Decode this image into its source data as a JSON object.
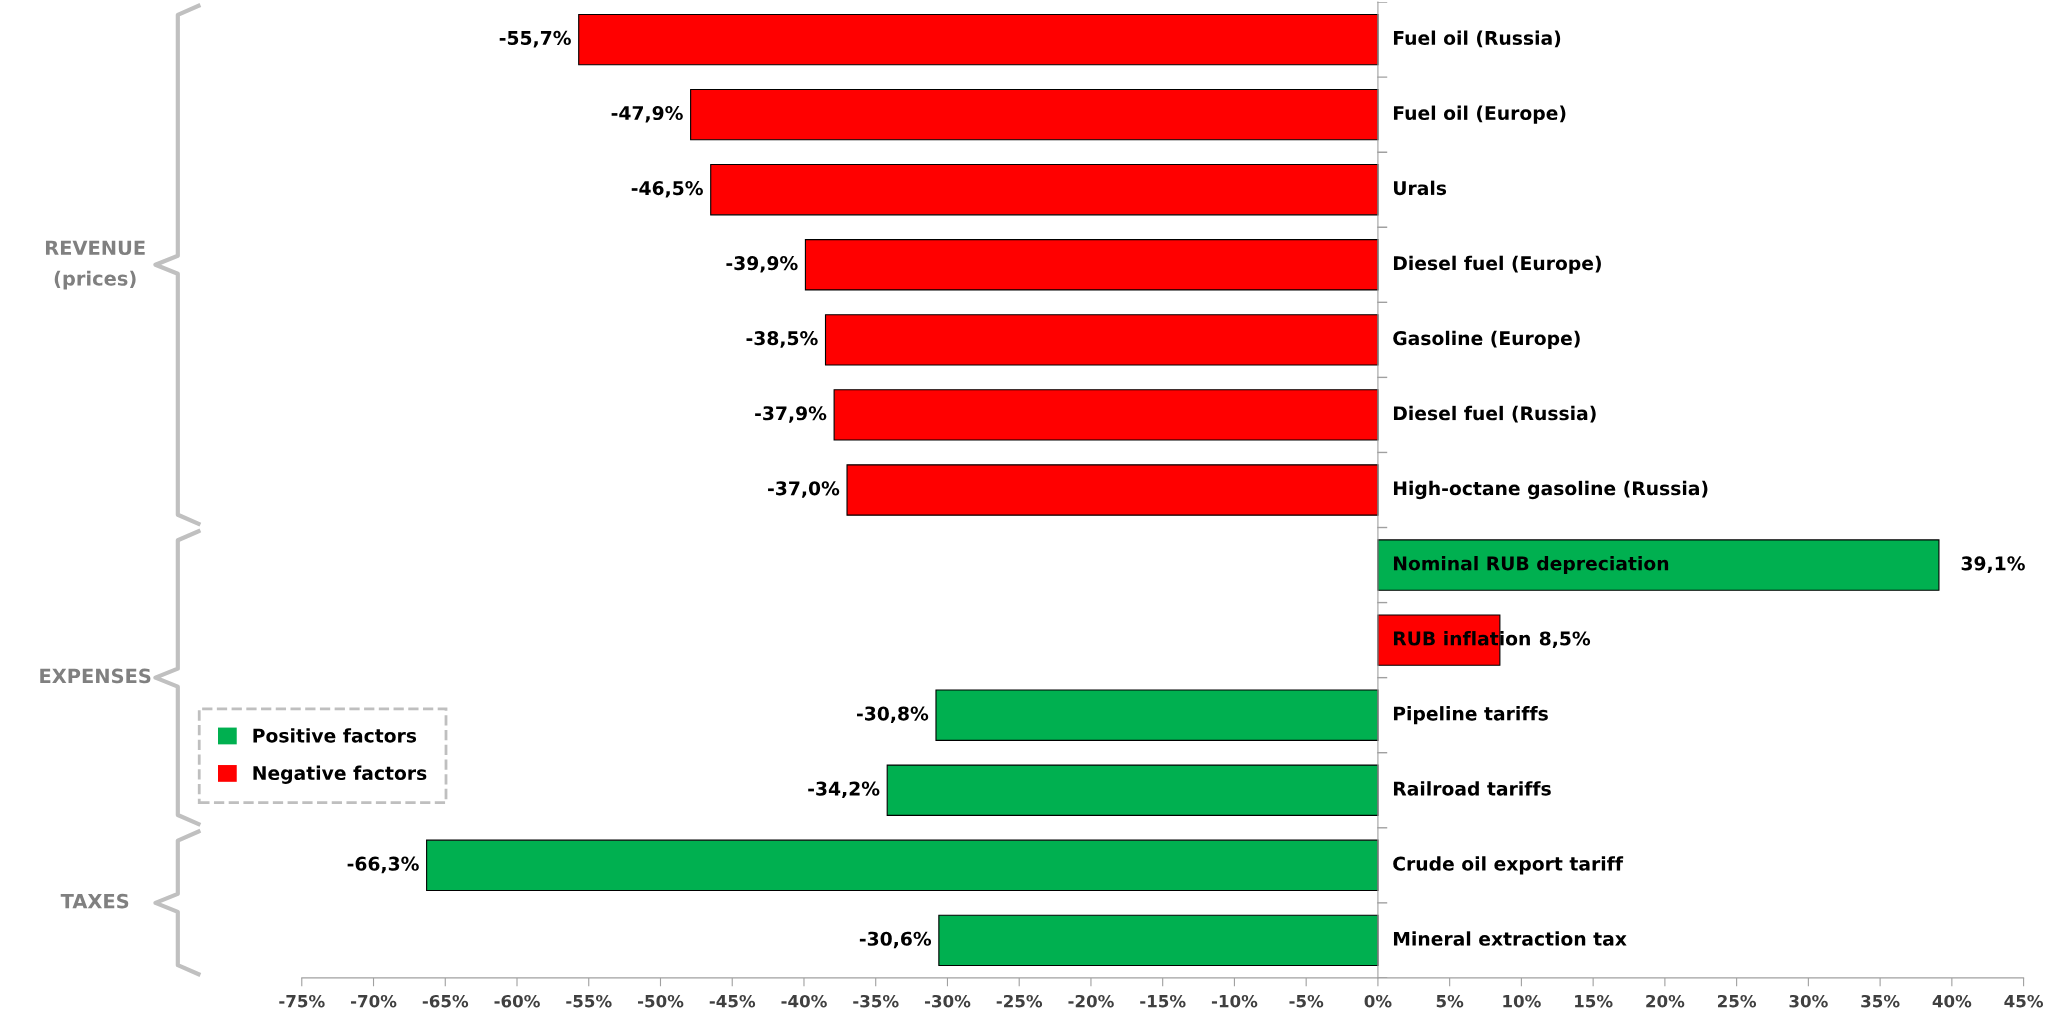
{
  "chart_data": {
    "type": "bar",
    "orientation": "horizontal",
    "categories": [
      "Fuel oil (Russia)",
      "Fuel oil (Europe)",
      "Urals",
      "Diesel fuel (Europe)",
      "Gasoline (Europe)",
      "Diesel fuel (Russia)",
      "High-octane gasoline (Russia)",
      "Nominal RUB depreciation",
      "RUB inflation",
      "Pipeline tariffs",
      "Railroad tariffs",
      "Crude oil export tariff",
      "Mineral extraction tax"
    ],
    "series": [
      {
        "name": "Positive factors",
        "color": "#00b050",
        "values": [
          null,
          null,
          null,
          null,
          null,
          null,
          null,
          39.1,
          null,
          -30.8,
          -34.2,
          -66.3,
          -30.6
        ],
        "value_labels": [
          null,
          null,
          null,
          null,
          null,
          null,
          null,
          "39,1%",
          null,
          "-30,8%",
          "-34,2%",
          "-66,3%",
          "-30,6%"
        ]
      },
      {
        "name": "Negative factors",
        "color": "#ff0000",
        "values": [
          -55.7,
          -47.9,
          -46.5,
          -39.9,
          -38.5,
          -37.9,
          -37.0,
          null,
          8.5,
          null,
          null,
          null,
          null
        ],
        "value_labels": [
          "-55,7%",
          "-47,9%",
          "-46,5%",
          "-39,9%",
          "-38,5%",
          "-37,9%",
          "-37,0%",
          null,
          "8,5%",
          null,
          null,
          null,
          null
        ]
      }
    ],
    "xlim": [
      -75,
      45
    ],
    "xticks": [
      {
        "value": -75,
        "label": "-75%"
      },
      {
        "value": -70,
        "label": "-70%"
      },
      {
        "value": -65,
        "label": "-65%"
      },
      {
        "value": -60,
        "label": "-60%"
      },
      {
        "value": -55,
        "label": "-55%"
      },
      {
        "value": -50,
        "label": "-50%"
      },
      {
        "value": -45,
        "label": "-45%"
      },
      {
        "value": -40,
        "label": "-40%"
      },
      {
        "value": -35,
        "label": "-35%"
      },
      {
        "value": -30,
        "label": "-30%"
      },
      {
        "value": -25,
        "label": "-25%"
      },
      {
        "value": -20,
        "label": "-20%"
      },
      {
        "value": -15,
        "label": "-15%"
      },
      {
        "value": -10,
        "label": "-10%"
      },
      {
        "value": -5,
        "label": "-5%"
      },
      {
        "value": 0,
        "label": "0%"
      },
      {
        "value": 5,
        "label": "5%"
      },
      {
        "value": 10,
        "label": "10%"
      },
      {
        "value": 15,
        "label": "15%"
      },
      {
        "value": 20,
        "label": "20%"
      },
      {
        "value": 25,
        "label": "25%"
      },
      {
        "value": 30,
        "label": "30%"
      },
      {
        "value": 35,
        "label": "35%"
      },
      {
        "value": 40,
        "label": "40%"
      },
      {
        "value": 45,
        "label": "45%"
      }
    ],
    "annotations": [
      "REVENUE\n(prices)",
      "EXPENSES",
      "TAXES"
    ],
    "legend": "bottom left",
    "grid": false
  }
}
